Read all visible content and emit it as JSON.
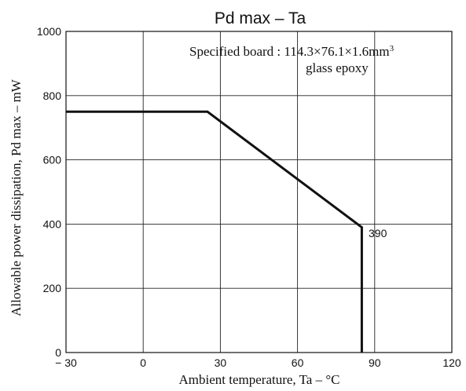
{
  "chart_data": {
    "type": "line",
    "title": "Pd max  –  Ta",
    "xlabel": "Ambient temperature,  Ta  –  °C",
    "ylabel": "Allowable power dissipation,  Pd max  –  mW",
    "xlim": [
      -30,
      120
    ],
    "ylim": [
      0,
      1000
    ],
    "x_ticks": [
      "− 30",
      "0",
      "30",
      "60",
      "90",
      "120"
    ],
    "y_ticks": [
      "0",
      "200",
      "400",
      "600",
      "800",
      "1000"
    ],
    "x_tick_values": [
      -30,
      0,
      30,
      60,
      90,
      120
    ],
    "y_tick_values": [
      0,
      200,
      400,
      600,
      800,
      1000
    ],
    "grid": true,
    "series": [
      {
        "x": [
          -30,
          25,
          85,
          85
        ],
        "y": [
          750,
          750,
          390,
          0
        ]
      }
    ],
    "annotations": {
      "board_line1": "Specified board : 114.3×76.1×1.6mm",
      "board_sup": "3",
      "board_line2": "glass epoxy",
      "point_label": "390"
    }
  }
}
